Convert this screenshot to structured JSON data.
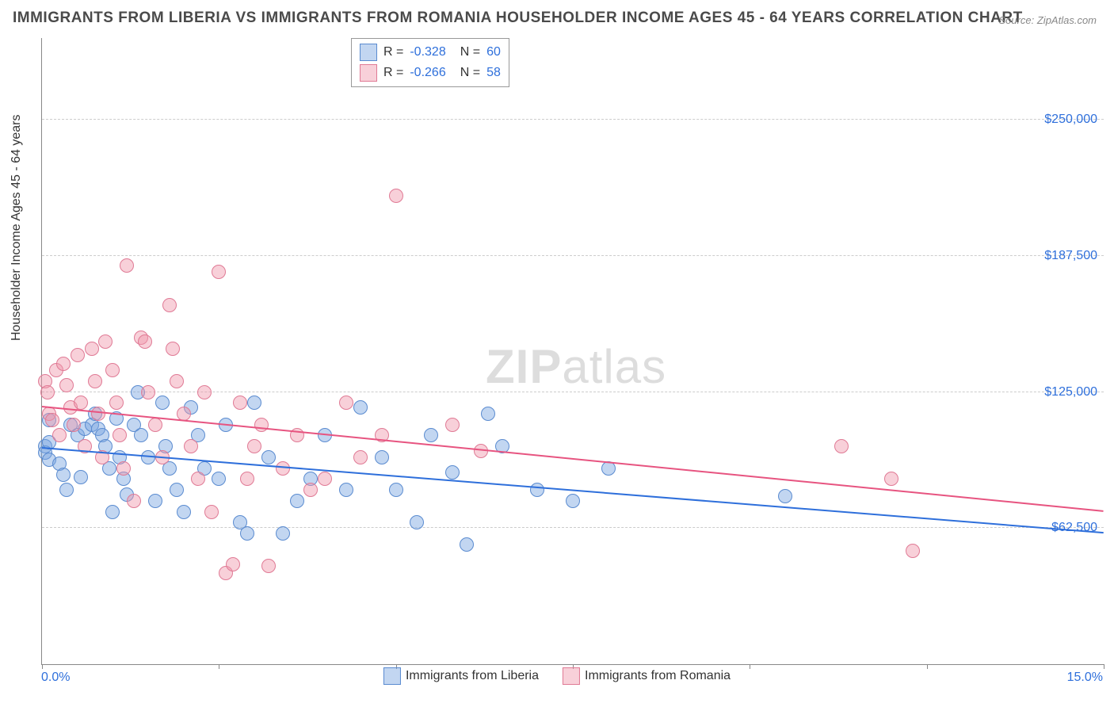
{
  "title": "IMMIGRANTS FROM LIBERIA VS IMMIGRANTS FROM ROMANIA HOUSEHOLDER INCOME AGES 45 - 64 YEARS CORRELATION CHART",
  "source": "Source: ZipAtlas.com",
  "watermark": {
    "part1": "ZIP",
    "part2": "atlas"
  },
  "chart": {
    "type": "scatter",
    "xlim": [
      0,
      15
    ],
    "ylim": [
      0,
      287500
    ],
    "x_tick_positions": [
      0,
      2.5,
      5,
      7.5,
      10,
      12.5,
      15
    ],
    "x_tick_labels": {
      "left": "0.0%",
      "right": "15.0%"
    },
    "y_gridlines": [
      62500,
      125000,
      187500,
      250000
    ],
    "y_tick_labels": [
      "$62,500",
      "$125,000",
      "$187,500",
      "$250,000"
    ],
    "y_axis_label": "Householder Income Ages 45 - 64 years",
    "background_color": "#ffffff",
    "grid_color": "#cccccc",
    "axis_color": "#888888",
    "tick_label_color": "#2e6fdb",
    "series": [
      {
        "name": "Immigrants from Liberia",
        "fill": "rgba(120,165,225,0.45)",
        "stroke": "#5a8bd0",
        "line_color": "#2e6fdb",
        "R": "-0.328",
        "N": "60",
        "trend": {
          "x1": 0,
          "y1": 99000,
          "x2": 15,
          "y2": 60000
        },
        "points": [
          [
            0.05,
            100000
          ],
          [
            0.05,
            97000
          ],
          [
            0.1,
            112000
          ],
          [
            0.1,
            102000
          ],
          [
            0.1,
            94000
          ],
          [
            0.25,
            92000
          ],
          [
            0.3,
            87000
          ],
          [
            0.35,
            80000
          ],
          [
            0.4,
            110000
          ],
          [
            0.5,
            105000
          ],
          [
            0.55,
            86000
          ],
          [
            0.6,
            108000
          ],
          [
            0.7,
            110000
          ],
          [
            0.75,
            115000
          ],
          [
            0.8,
            108000
          ],
          [
            0.85,
            105000
          ],
          [
            0.9,
            100000
          ],
          [
            0.95,
            90000
          ],
          [
            1.0,
            70000
          ],
          [
            1.05,
            113000
          ],
          [
            1.1,
            95000
          ],
          [
            1.15,
            85000
          ],
          [
            1.2,
            78000
          ],
          [
            1.3,
            110000
          ],
          [
            1.35,
            125000
          ],
          [
            1.4,
            105000
          ],
          [
            1.5,
            95000
          ],
          [
            1.6,
            75000
          ],
          [
            1.7,
            120000
          ],
          [
            1.75,
            100000
          ],
          [
            1.8,
            90000
          ],
          [
            1.9,
            80000
          ],
          [
            2.0,
            70000
          ],
          [
            2.1,
            118000
          ],
          [
            2.2,
            105000
          ],
          [
            2.3,
            90000
          ],
          [
            2.5,
            85000
          ],
          [
            2.6,
            110000
          ],
          [
            2.8,
            65000
          ],
          [
            2.9,
            60000
          ],
          [
            3.0,
            120000
          ],
          [
            3.2,
            95000
          ],
          [
            3.4,
            60000
          ],
          [
            3.6,
            75000
          ],
          [
            3.8,
            85000
          ],
          [
            4.0,
            105000
          ],
          [
            4.3,
            80000
          ],
          [
            4.5,
            118000
          ],
          [
            4.8,
            95000
          ],
          [
            5.0,
            80000
          ],
          [
            5.3,
            65000
          ],
          [
            5.5,
            105000
          ],
          [
            5.8,
            88000
          ],
          [
            6.0,
            55000
          ],
          [
            6.3,
            115000
          ],
          [
            6.5,
            100000
          ],
          [
            7.0,
            80000
          ],
          [
            7.5,
            75000
          ],
          [
            10.5,
            77000
          ],
          [
            8.0,
            90000
          ]
        ]
      },
      {
        "name": "Immigrants from Romania",
        "fill": "rgba(240,150,170,0.45)",
        "stroke": "#e07a95",
        "line_color": "#e75480",
        "R": "-0.266",
        "N": "58",
        "trend": {
          "x1": 0,
          "y1": 118000,
          "x2": 15,
          "y2": 70000
        },
        "points": [
          [
            0.05,
            130000
          ],
          [
            0.08,
            125000
          ],
          [
            0.1,
            115000
          ],
          [
            0.15,
            112000
          ],
          [
            0.2,
            135000
          ],
          [
            0.25,
            105000
          ],
          [
            0.3,
            138000
          ],
          [
            0.35,
            128000
          ],
          [
            0.4,
            118000
          ],
          [
            0.45,
            110000
          ],
          [
            0.5,
            142000
          ],
          [
            0.55,
            120000
          ],
          [
            0.6,
            100000
          ],
          [
            0.7,
            145000
          ],
          [
            0.75,
            130000
          ],
          [
            0.8,
            115000
          ],
          [
            0.85,
            95000
          ],
          [
            0.9,
            148000
          ],
          [
            1.0,
            135000
          ],
          [
            1.05,
            120000
          ],
          [
            1.1,
            105000
          ],
          [
            1.15,
            90000
          ],
          [
            1.2,
            183000
          ],
          [
            1.3,
            75000
          ],
          [
            1.4,
            150000
          ],
          [
            1.45,
            148000
          ],
          [
            1.5,
            125000
          ],
          [
            1.6,
            110000
          ],
          [
            1.7,
            95000
          ],
          [
            1.8,
            165000
          ],
          [
            1.85,
            145000
          ],
          [
            1.9,
            130000
          ],
          [
            2.0,
            115000
          ],
          [
            2.1,
            100000
          ],
          [
            2.2,
            85000
          ],
          [
            2.3,
            125000
          ],
          [
            2.4,
            70000
          ],
          [
            2.5,
            180000
          ],
          [
            2.6,
            42000
          ],
          [
            2.7,
            46000
          ],
          [
            2.8,
            120000
          ],
          [
            2.9,
            85000
          ],
          [
            3.0,
            100000
          ],
          [
            3.1,
            110000
          ],
          [
            3.2,
            45000
          ],
          [
            3.4,
            90000
          ],
          [
            3.6,
            105000
          ],
          [
            3.8,
            80000
          ],
          [
            4.0,
            85000
          ],
          [
            4.3,
            120000
          ],
          [
            4.5,
            95000
          ],
          [
            4.8,
            105000
          ],
          [
            5.0,
            215000
          ],
          [
            5.8,
            110000
          ],
          [
            6.2,
            98000
          ],
          [
            11.3,
            100000
          ],
          [
            12.0,
            85000
          ],
          [
            12.3,
            52000
          ]
        ]
      }
    ]
  }
}
